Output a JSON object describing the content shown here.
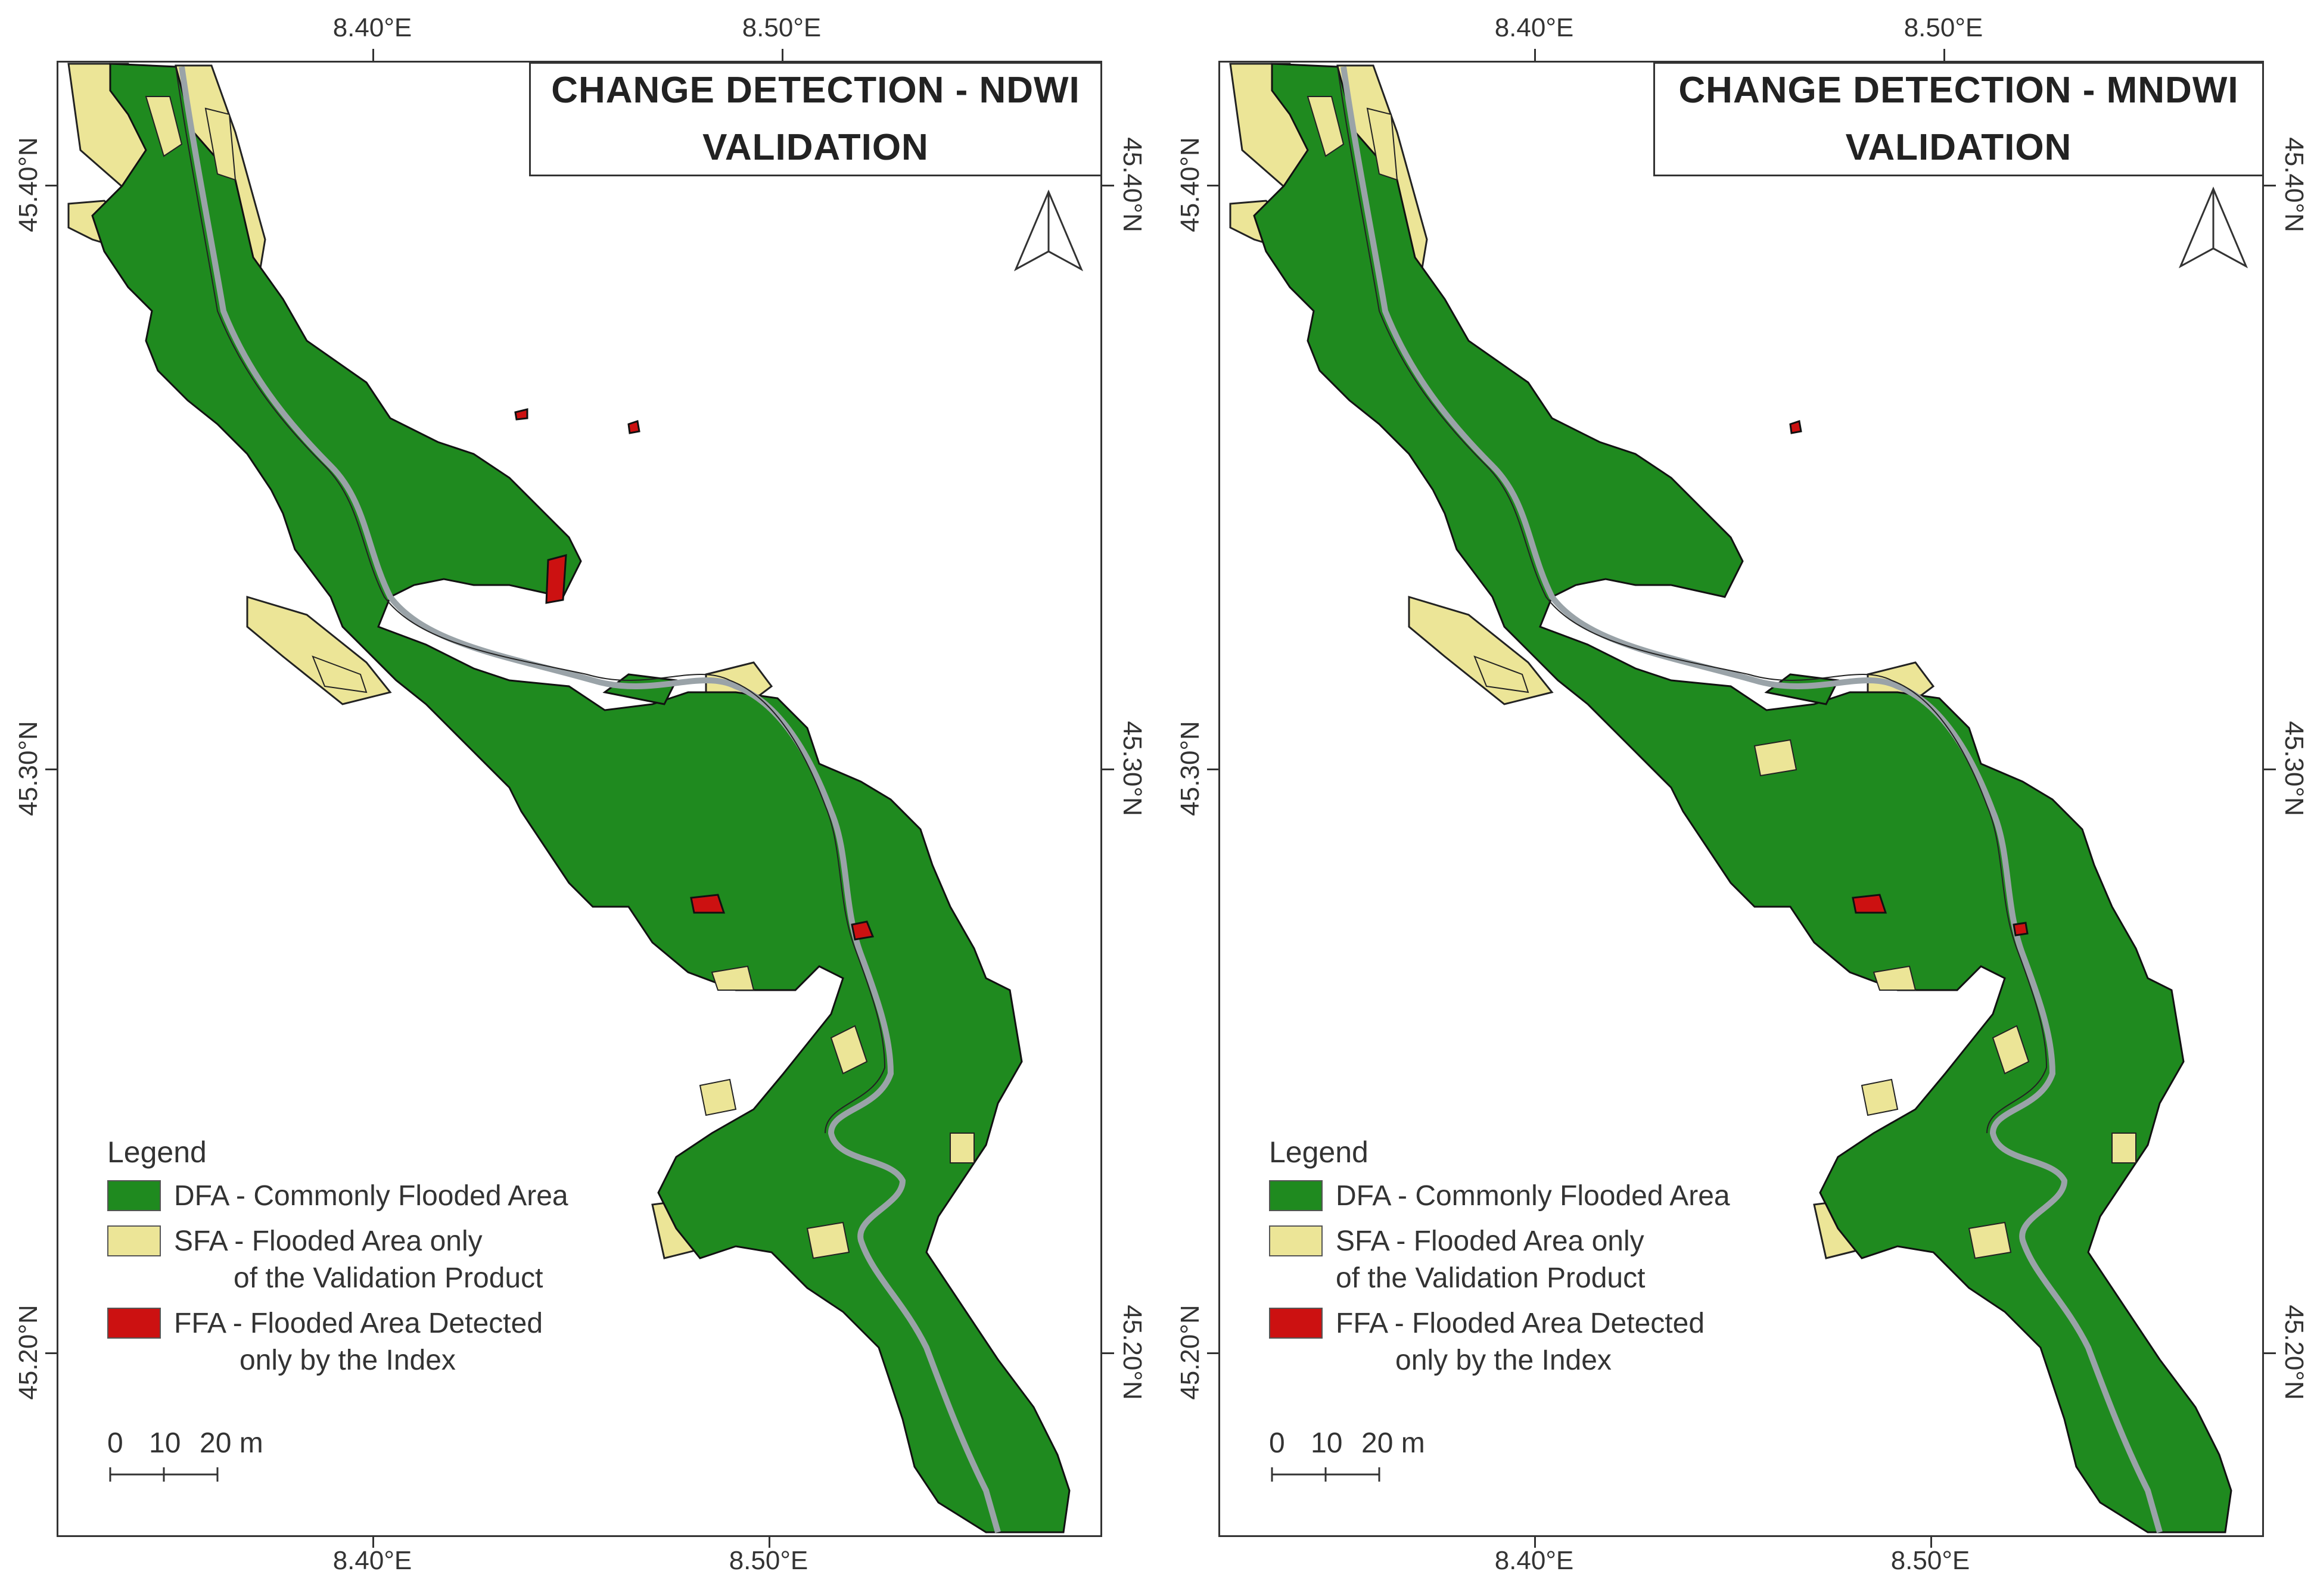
{
  "panels": [
    {
      "id": "left",
      "title_line1": "CHANGE DETECTION - NDWI",
      "title_line2": "VALIDATION",
      "top_ticks": [
        "8.40°E",
        "8.50°E"
      ],
      "bottom_ticks": [
        "8.40°E",
        "8.50°E"
      ],
      "left_ticks": [
        "45.40°N",
        "45.30°N",
        "45.20°N"
      ],
      "right_ticks": [
        "45.40°N",
        "45.30°N",
        "45.20°N"
      ],
      "legend": {
        "heading": "Legend",
        "items": [
          {
            "line1": "DFA - Commonly Flooded Area",
            "line2": ""
          },
          {
            "line1": "SFA - Flooded Area only",
            "line2": "of the Validation Product"
          },
          {
            "line1": "FFA - Flooded Area Detected",
            "line2": "only by the Index"
          }
        ]
      },
      "scale": {
        "labels": [
          "0",
          "10",
          "20 m"
        ]
      }
    },
    {
      "id": "right",
      "title_line1": "CHANGE DETECTION - MNDWI",
      "title_line2": "VALIDATION",
      "top_ticks": [
        "8.40°E",
        "8.50°E"
      ],
      "bottom_ticks": [
        "8.40°E",
        "8.50°E"
      ],
      "left_ticks": [
        "45.40°N",
        "45.30°N",
        "45.20°N"
      ],
      "right_ticks": [
        "45.40°N",
        "45.30°N",
        "45.20°N"
      ],
      "legend": {
        "heading": "Legend",
        "items": [
          {
            "line1": "DFA - Commonly Flooded Area",
            "line2": ""
          },
          {
            "line1": "SFA - Flooded Area only",
            "line2": "of the Validation Product"
          },
          {
            "line1": "FFA - Flooded Area Detected",
            "line2": "only by the Index"
          }
        ]
      },
      "scale": {
        "labels": [
          "0",
          "10",
          "20 m"
        ]
      }
    }
  ],
  "colors": {
    "dfa": "#1f8a1f",
    "sfa": "#ece597",
    "ffa": "#cc1111",
    "river": "#9aa3a8"
  },
  "icons": {
    "north_arrow": "north-arrow-icon"
  }
}
